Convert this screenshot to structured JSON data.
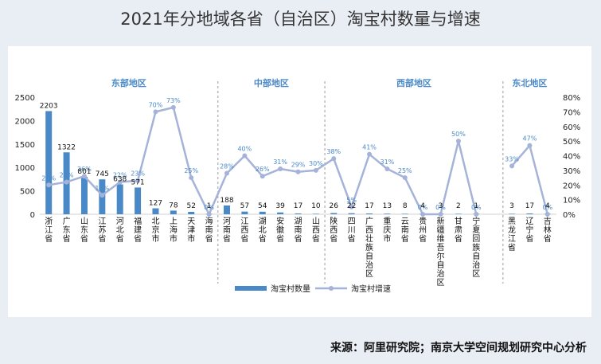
{
  "title": "2021年分地域各省（自治区）淘宝村数量与增速",
  "source": "来源：阿里研究院；南京大学空间规划研究中心分析",
  "chart_data": {
    "type": "bar+line",
    "title": "2021年分地域各省（自治区）淘宝村数量与增速",
    "regions": [
      {
        "name": "东部地区",
        "count": 10
      },
      {
        "name": "中部地区",
        "count": 6
      },
      {
        "name": "西部地区",
        "count": 10
      },
      {
        "name": "东北地区",
        "count": 3
      }
    ],
    "categories": [
      "浙江省",
      "广东省",
      "山东省",
      "江苏省",
      "河北省",
      "福建省",
      "北京市",
      "上海市",
      "天津市",
      "海南省",
      "河南省",
      "江西省",
      "湖北省",
      "安徽省",
      "湖南省",
      "山西省",
      "陕西省",
      "四川省",
      "广西壮族自治区",
      "重庆市",
      "云南省",
      "贵州省",
      "新疆维吾尔自治区",
      "甘肃省",
      "宁夏回族自治区",
      "",
      "黑龙江省",
      "辽宁省",
      "吉林省"
    ],
    "series": [
      {
        "name": "淘宝村数量",
        "axis": "left",
        "values": [
          2203,
          1322,
          801,
          745,
          638,
          571,
          127,
          78,
          52,
          1,
          188,
          57,
          54,
          39,
          17,
          10,
          26,
          22,
          17,
          13,
          8,
          4,
          3,
          2,
          1,
          null,
          3,
          17,
          4
        ],
        "labels": [
          "2203",
          "1322",
          "801",
          "745",
          "638",
          "571",
          "127",
          "78",
          "52",
          "1",
          "188",
          "57",
          "54",
          "39",
          "17",
          "10",
          "26",
          "22",
          "17",
          "13",
          "8",
          "4",
          "3",
          "2",
          "1",
          "",
          "3",
          "17",
          "4"
        ]
      },
      {
        "name": "淘宝村增速",
        "axis": "right",
        "values": [
          20,
          22,
          26,
          13,
          22,
          23,
          70,
          73,
          25,
          0,
          28,
          40,
          26,
          31,
          29,
          30,
          38,
          5,
          41,
          31,
          25,
          0,
          0,
          50,
          0,
          null,
          33,
          47,
          0
        ],
        "labels": [
          "20%",
          "22%",
          "26%",
          "13%",
          "22%",
          "23%",
          "70%",
          "73%",
          "25%",
          "0%",
          "28%",
          "40%",
          "26%",
          "31%",
          "29%",
          "30%",
          "38%",
          "5%",
          "41%",
          "31%",
          "25%",
          "0%",
          "0%",
          "50%",
          "0%",
          "",
          "33%",
          "47%",
          "0%"
        ]
      }
    ],
    "y_left": {
      "ticks": [
        "0",
        "500",
        "1000",
        "1500",
        "2000",
        "2500"
      ],
      "ylim": [
        0,
        2500
      ]
    },
    "y_right": {
      "ticks": [
        "0%",
        "10%",
        "20%",
        "30%",
        "40%",
        "50%",
        "60%",
        "70%",
        "80%"
      ],
      "ylim": [
        0,
        80
      ]
    },
    "legend": {
      "position": "bottom",
      "bar_label": "淘宝村数量",
      "line_label": "淘宝村增速"
    },
    "colors": {
      "bar": "#4a89c8",
      "line": "#a6b3d9",
      "region_label": "#4a89c8",
      "pct_label": "#4a89c8"
    }
  }
}
